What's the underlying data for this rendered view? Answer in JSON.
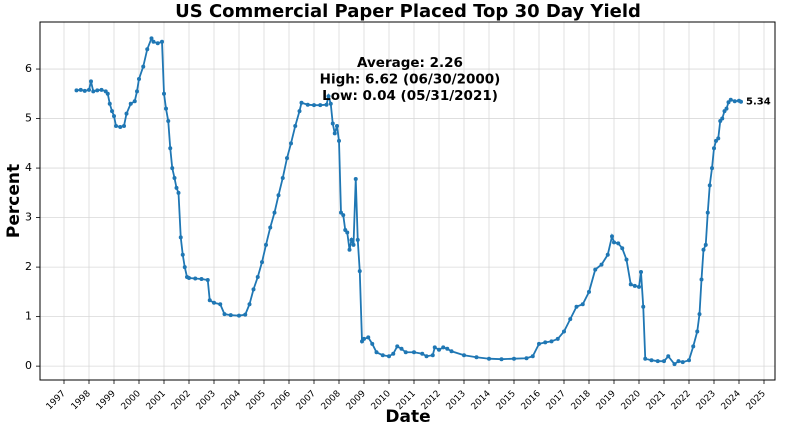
{
  "chart_data": {
    "type": "line",
    "title": "US Commercial Paper Placed Top 30 Day Yield",
    "x_label": "Date",
    "y_label": "Percent",
    "annotations": [
      "Average: 2.26",
      "High: 6.62 (06/30/2000)",
      "Low: 0.04 (05/31/2021)"
    ],
    "x": [
      1997.5,
      1997.67,
      1997.83,
      1998.0,
      1998.08,
      1998.17,
      1998.33,
      1998.5,
      1998.67,
      1998.75,
      1998.83,
      1998.92,
      1999.0,
      1999.08,
      1999.25,
      1999.4,
      1999.5,
      1999.67,
      1999.83,
      1999.92,
      2000.0,
      2000.17,
      2000.33,
      2000.5,
      2000.58,
      2000.75,
      2000.92,
      2001.0,
      2001.08,
      2001.17,
      2001.25,
      2001.33,
      2001.42,
      2001.5,
      2001.58,
      2001.67,
      2001.75,
      2001.83,
      2001.92,
      2002.0,
      2002.25,
      2002.5,
      2002.75,
      2002.83,
      2003.0,
      2003.25,
      2003.42,
      2003.67,
      2004.0,
      2004.25,
      2004.42,
      2004.58,
      2004.75,
      2004.92,
      2005.08,
      2005.25,
      2005.42,
      2005.58,
      2005.75,
      2005.92,
      2006.08,
      2006.25,
      2006.42,
      2006.5,
      2006.75,
      2007.0,
      2007.25,
      2007.5,
      2007.58,
      2007.67,
      2007.75,
      2007.83,
      2007.92,
      2008.0,
      2008.08,
      2008.17,
      2008.25,
      2008.33,
      2008.42,
      2008.5,
      2008.58,
      2008.67,
      2008.75,
      2008.83,
      2008.92,
      2009.0,
      2009.17,
      2009.33,
      2009.5,
      2009.75,
      2010.0,
      2010.17,
      2010.33,
      2010.5,
      2010.67,
      2011.0,
      2011.33,
      2011.5,
      2011.75,
      2011.83,
      2012.0,
      2012.17,
      2012.33,
      2012.5,
      2013.0,
      2013.5,
      2014.0,
      2014.5,
      2015.0,
      2015.5,
      2015.75,
      2016.0,
      2016.25,
      2016.5,
      2016.75,
      2017.0,
      2017.25,
      2017.5,
      2017.75,
      2018.0,
      2018.25,
      2018.5,
      2018.75,
      2018.92,
      2019.0,
      2019.17,
      2019.33,
      2019.5,
      2019.67,
      2019.83,
      2020.0,
      2020.08,
      2020.17,
      2020.25,
      2020.5,
      2020.75,
      2021.0,
      2021.17,
      2021.42,
      2021.58,
      2021.75,
      2022.0,
      2022.17,
      2022.33,
      2022.42,
      2022.5,
      2022.58,
      2022.67,
      2022.75,
      2022.83,
      2022.92,
      2023.0,
      2023.08,
      2023.17,
      2023.25,
      2023.33,
      2023.42,
      2023.5,
      2023.58,
      2023.67,
      2023.83,
      2024.0,
      2024.08
    ],
    "series": [
      {
        "name": "Yield",
        "color": "#1f77b4",
        "values": [
          5.57,
          5.58,
          5.56,
          5.58,
          5.75,
          5.55,
          5.57,
          5.58,
          5.55,
          5.5,
          5.3,
          5.15,
          5.05,
          4.85,
          4.83,
          4.85,
          5.1,
          5.3,
          5.35,
          5.55,
          5.8,
          6.05,
          6.4,
          6.62,
          6.55,
          6.52,
          6.55,
          5.5,
          5.2,
          4.95,
          4.4,
          4.0,
          3.8,
          3.6,
          3.5,
          2.6,
          2.25,
          2.0,
          1.8,
          1.78,
          1.77,
          1.76,
          1.74,
          1.33,
          1.28,
          1.25,
          1.05,
          1.03,
          1.02,
          1.04,
          1.25,
          1.55,
          1.8,
          2.1,
          2.45,
          2.8,
          3.1,
          3.45,
          3.8,
          4.2,
          4.5,
          4.85,
          5.15,
          5.32,
          5.28,
          5.27,
          5.27,
          5.28,
          5.45,
          5.3,
          4.9,
          4.7,
          4.85,
          4.55,
          3.1,
          3.05,
          2.75,
          2.7,
          2.35,
          2.55,
          2.45,
          3.78,
          2.55,
          1.92,
          0.5,
          0.55,
          0.58,
          0.45,
          0.28,
          0.22,
          0.2,
          0.25,
          0.4,
          0.35,
          0.28,
          0.28,
          0.25,
          0.2,
          0.22,
          0.38,
          0.33,
          0.38,
          0.35,
          0.3,
          0.22,
          0.18,
          0.15,
          0.14,
          0.15,
          0.16,
          0.2,
          0.45,
          0.48,
          0.5,
          0.55,
          0.7,
          0.95,
          1.2,
          1.25,
          1.5,
          1.95,
          2.05,
          2.25,
          2.62,
          2.5,
          2.48,
          2.38,
          2.15,
          1.65,
          1.62,
          1.6,
          1.9,
          1.2,
          0.15,
          0.12,
          0.1,
          0.1,
          0.2,
          0.04,
          0.1,
          0.08,
          0.12,
          0.4,
          0.7,
          1.05,
          1.75,
          2.35,
          2.45,
          3.1,
          3.65,
          4.0,
          4.4,
          4.55,
          4.6,
          4.95,
          5.0,
          5.15,
          5.2,
          5.33,
          5.38,
          5.35,
          5.36,
          5.34
        ]
      }
    ],
    "xlim": [
      1996.04,
      2025.44
    ],
    "ylim": [
      -0.28,
      6.95
    ],
    "xticks": [
      1997,
      1998,
      1999,
      2000,
      2001,
      2002,
      2003,
      2004,
      2005,
      2006,
      2007,
      2008,
      2009,
      2010,
      2011,
      2012,
      2013,
      2014,
      2015,
      2016,
      2017,
      2018,
      2019,
      2020,
      2021,
      2022,
      2023,
      2024,
      2025
    ],
    "yticks": [
      0,
      1,
      2,
      3,
      4,
      5,
      6
    ],
    "grid": true
  }
}
